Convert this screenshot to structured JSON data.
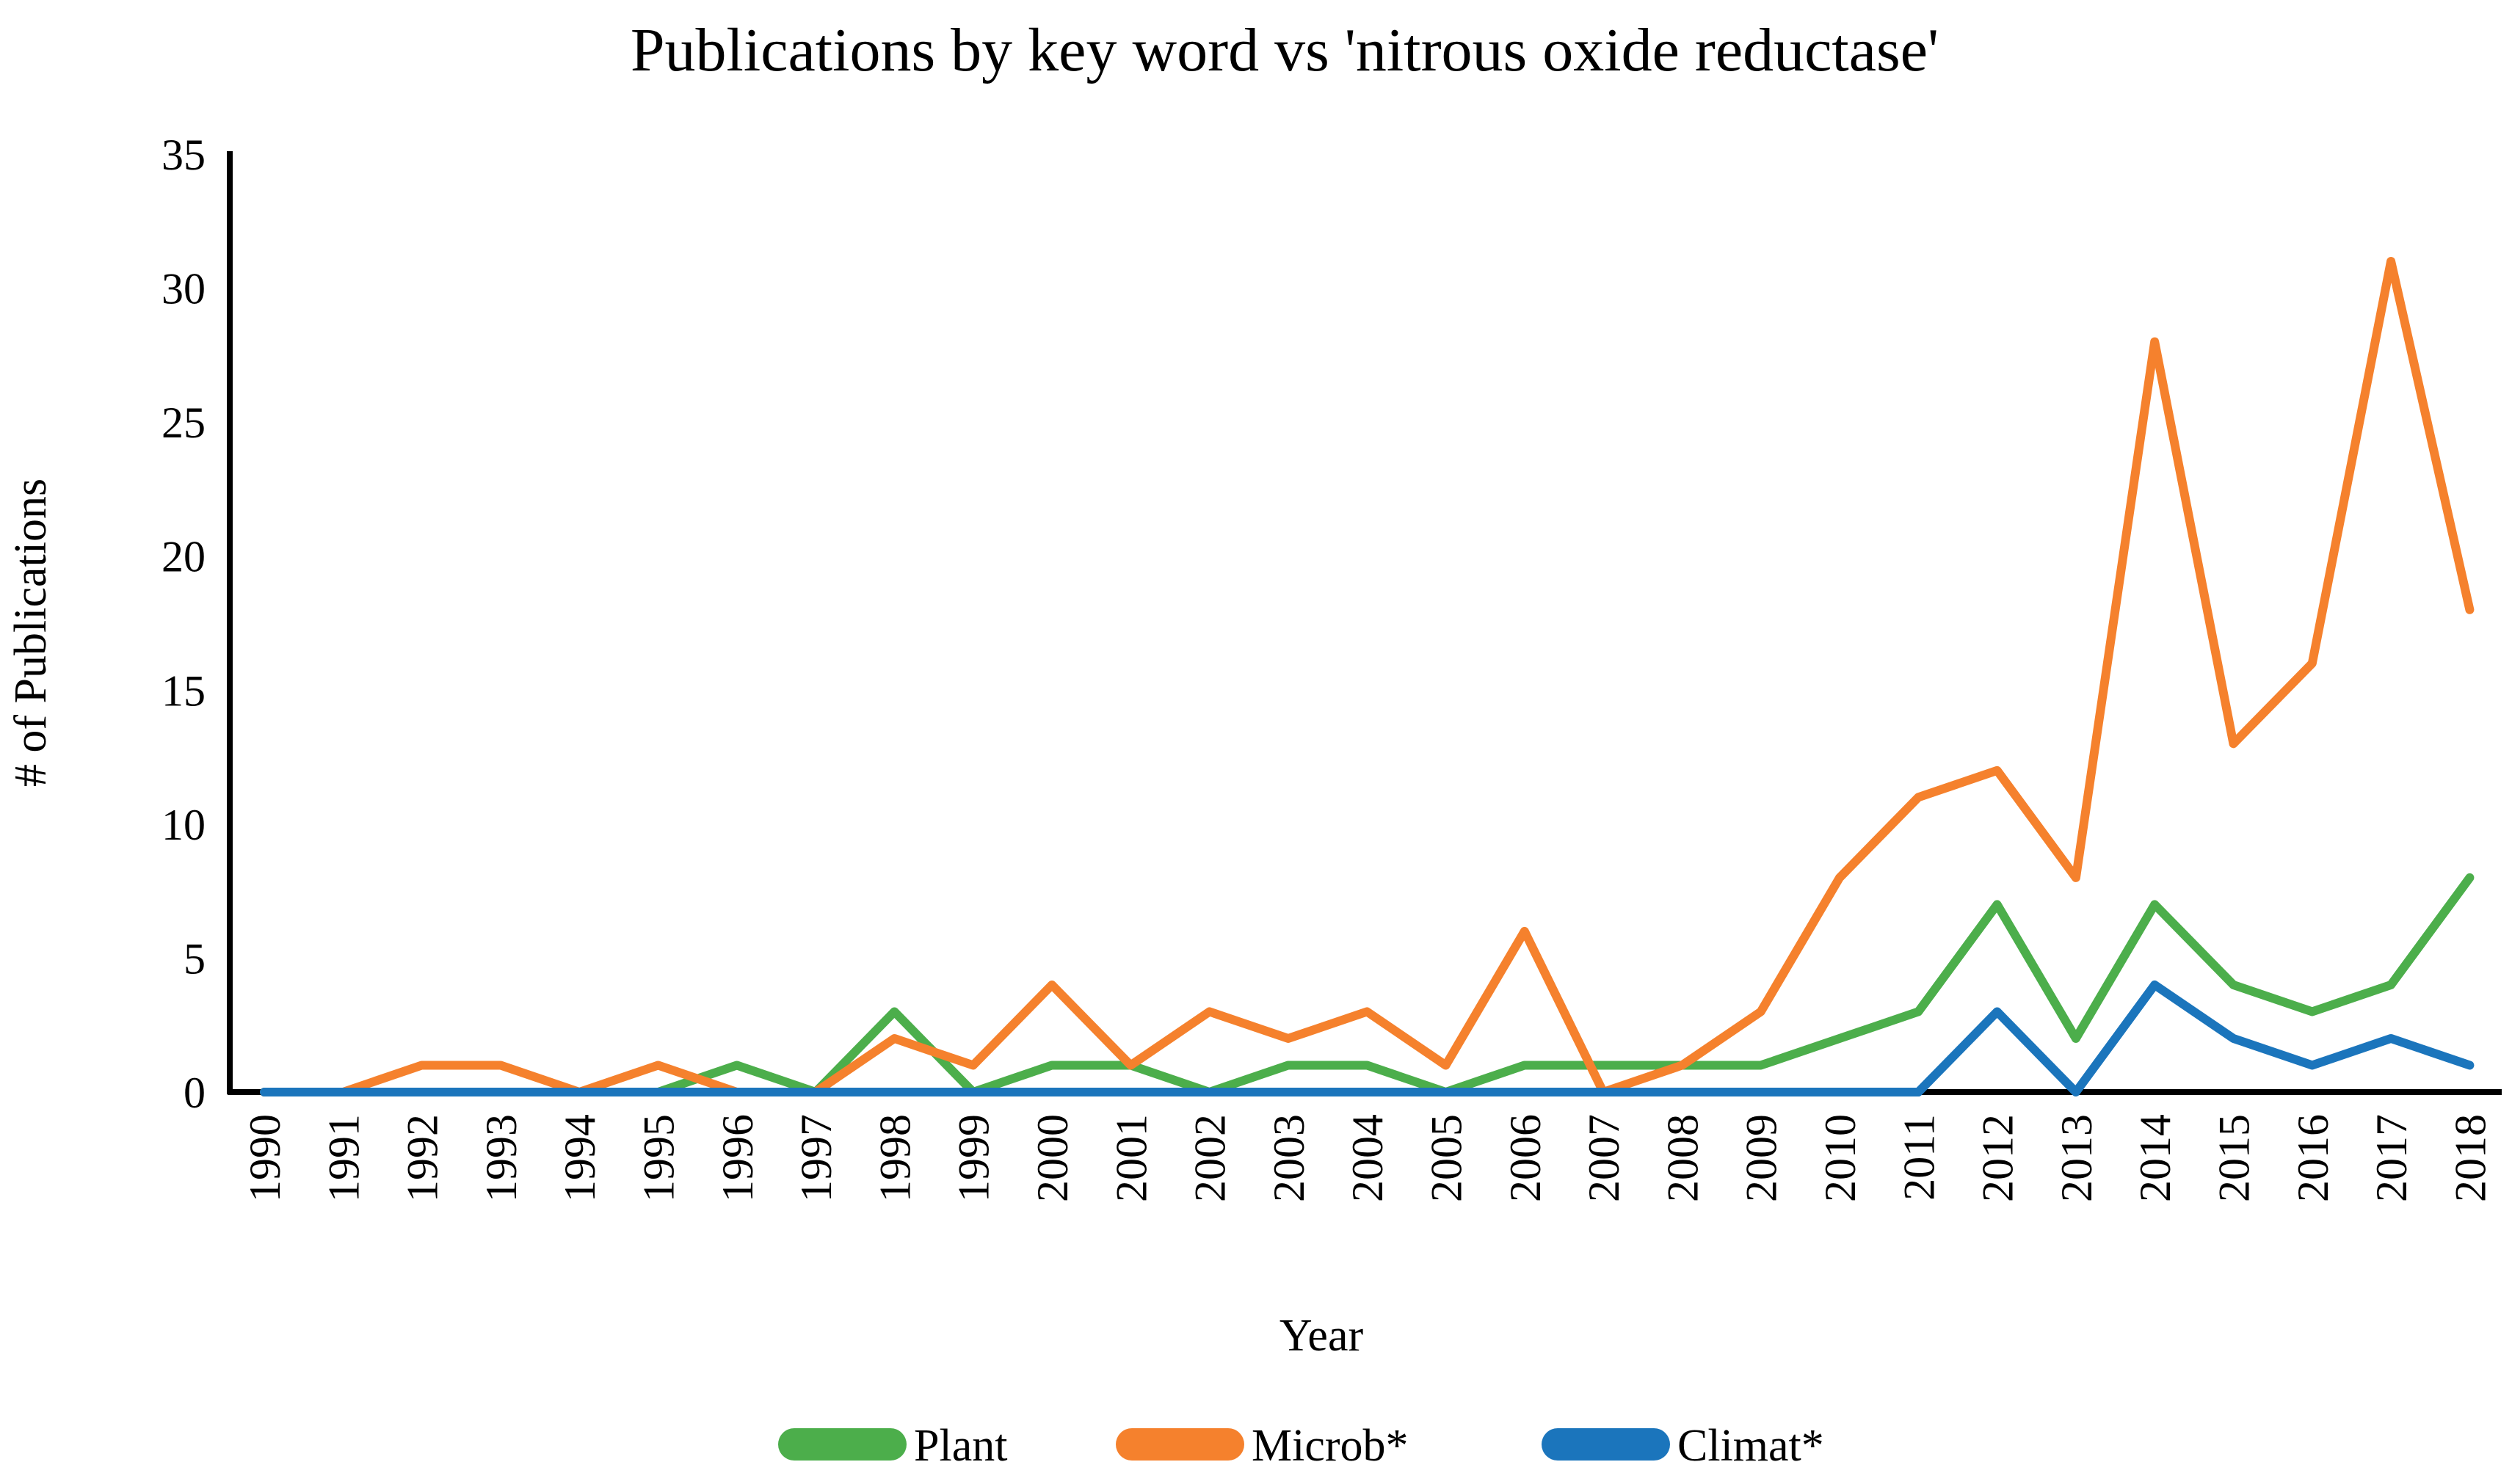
{
  "chart_data": {
    "type": "line",
    "title": "Publications by key word vs 'nitrous oxide reductase'",
    "xlabel": "Year",
    "ylabel": "# of Publications",
    "categories": [
      "1990",
      "1991",
      "1992",
      "1993",
      "1994",
      "1995",
      "1996",
      "1997",
      "1998",
      "1999",
      "2000",
      "2001",
      "2002",
      "2003",
      "2004",
      "2005",
      "2006",
      "2007",
      "2008",
      "2009",
      "2010",
      "2011",
      "2012",
      "2013",
      "2014",
      "2015",
      "2016",
      "2017",
      "2018"
    ],
    "series": [
      {
        "name": "Plant",
        "color": "#4CAE4B",
        "values": [
          0,
          0,
          0,
          0,
          0,
          0,
          1,
          0,
          3,
          0,
          1,
          1,
          0,
          1,
          1,
          0,
          1,
          1,
          1,
          1,
          2,
          3,
          7,
          2,
          7,
          4,
          3,
          4,
          8
        ]
      },
      {
        "name": "Microb*",
        "color": "#F5812D",
        "values": [
          0,
          0,
          1,
          1,
          0,
          1,
          0,
          0,
          2,
          1,
          4,
          1,
          3,
          2,
          3,
          1,
          6,
          0,
          1,
          3,
          8,
          11,
          12,
          8,
          28,
          13,
          16,
          31,
          18
        ]
      },
      {
        "name": "Climat*",
        "color": "#1B75BC",
        "values": [
          0,
          0,
          0,
          0,
          0,
          0,
          0,
          0,
          0,
          0,
          0,
          0,
          0,
          0,
          0,
          0,
          0,
          0,
          0,
          0,
          0,
          0,
          3,
          0,
          4,
          2,
          1,
          2,
          1
        ]
      }
    ],
    "ylim": [
      0,
      35
    ],
    "ytick_step": 5,
    "yticks": [
      "0",
      "5",
      "10",
      "15",
      "20",
      "25",
      "30",
      "35"
    ],
    "grid": false,
    "legend_position": "bottom",
    "axis_color": "#000000"
  }
}
